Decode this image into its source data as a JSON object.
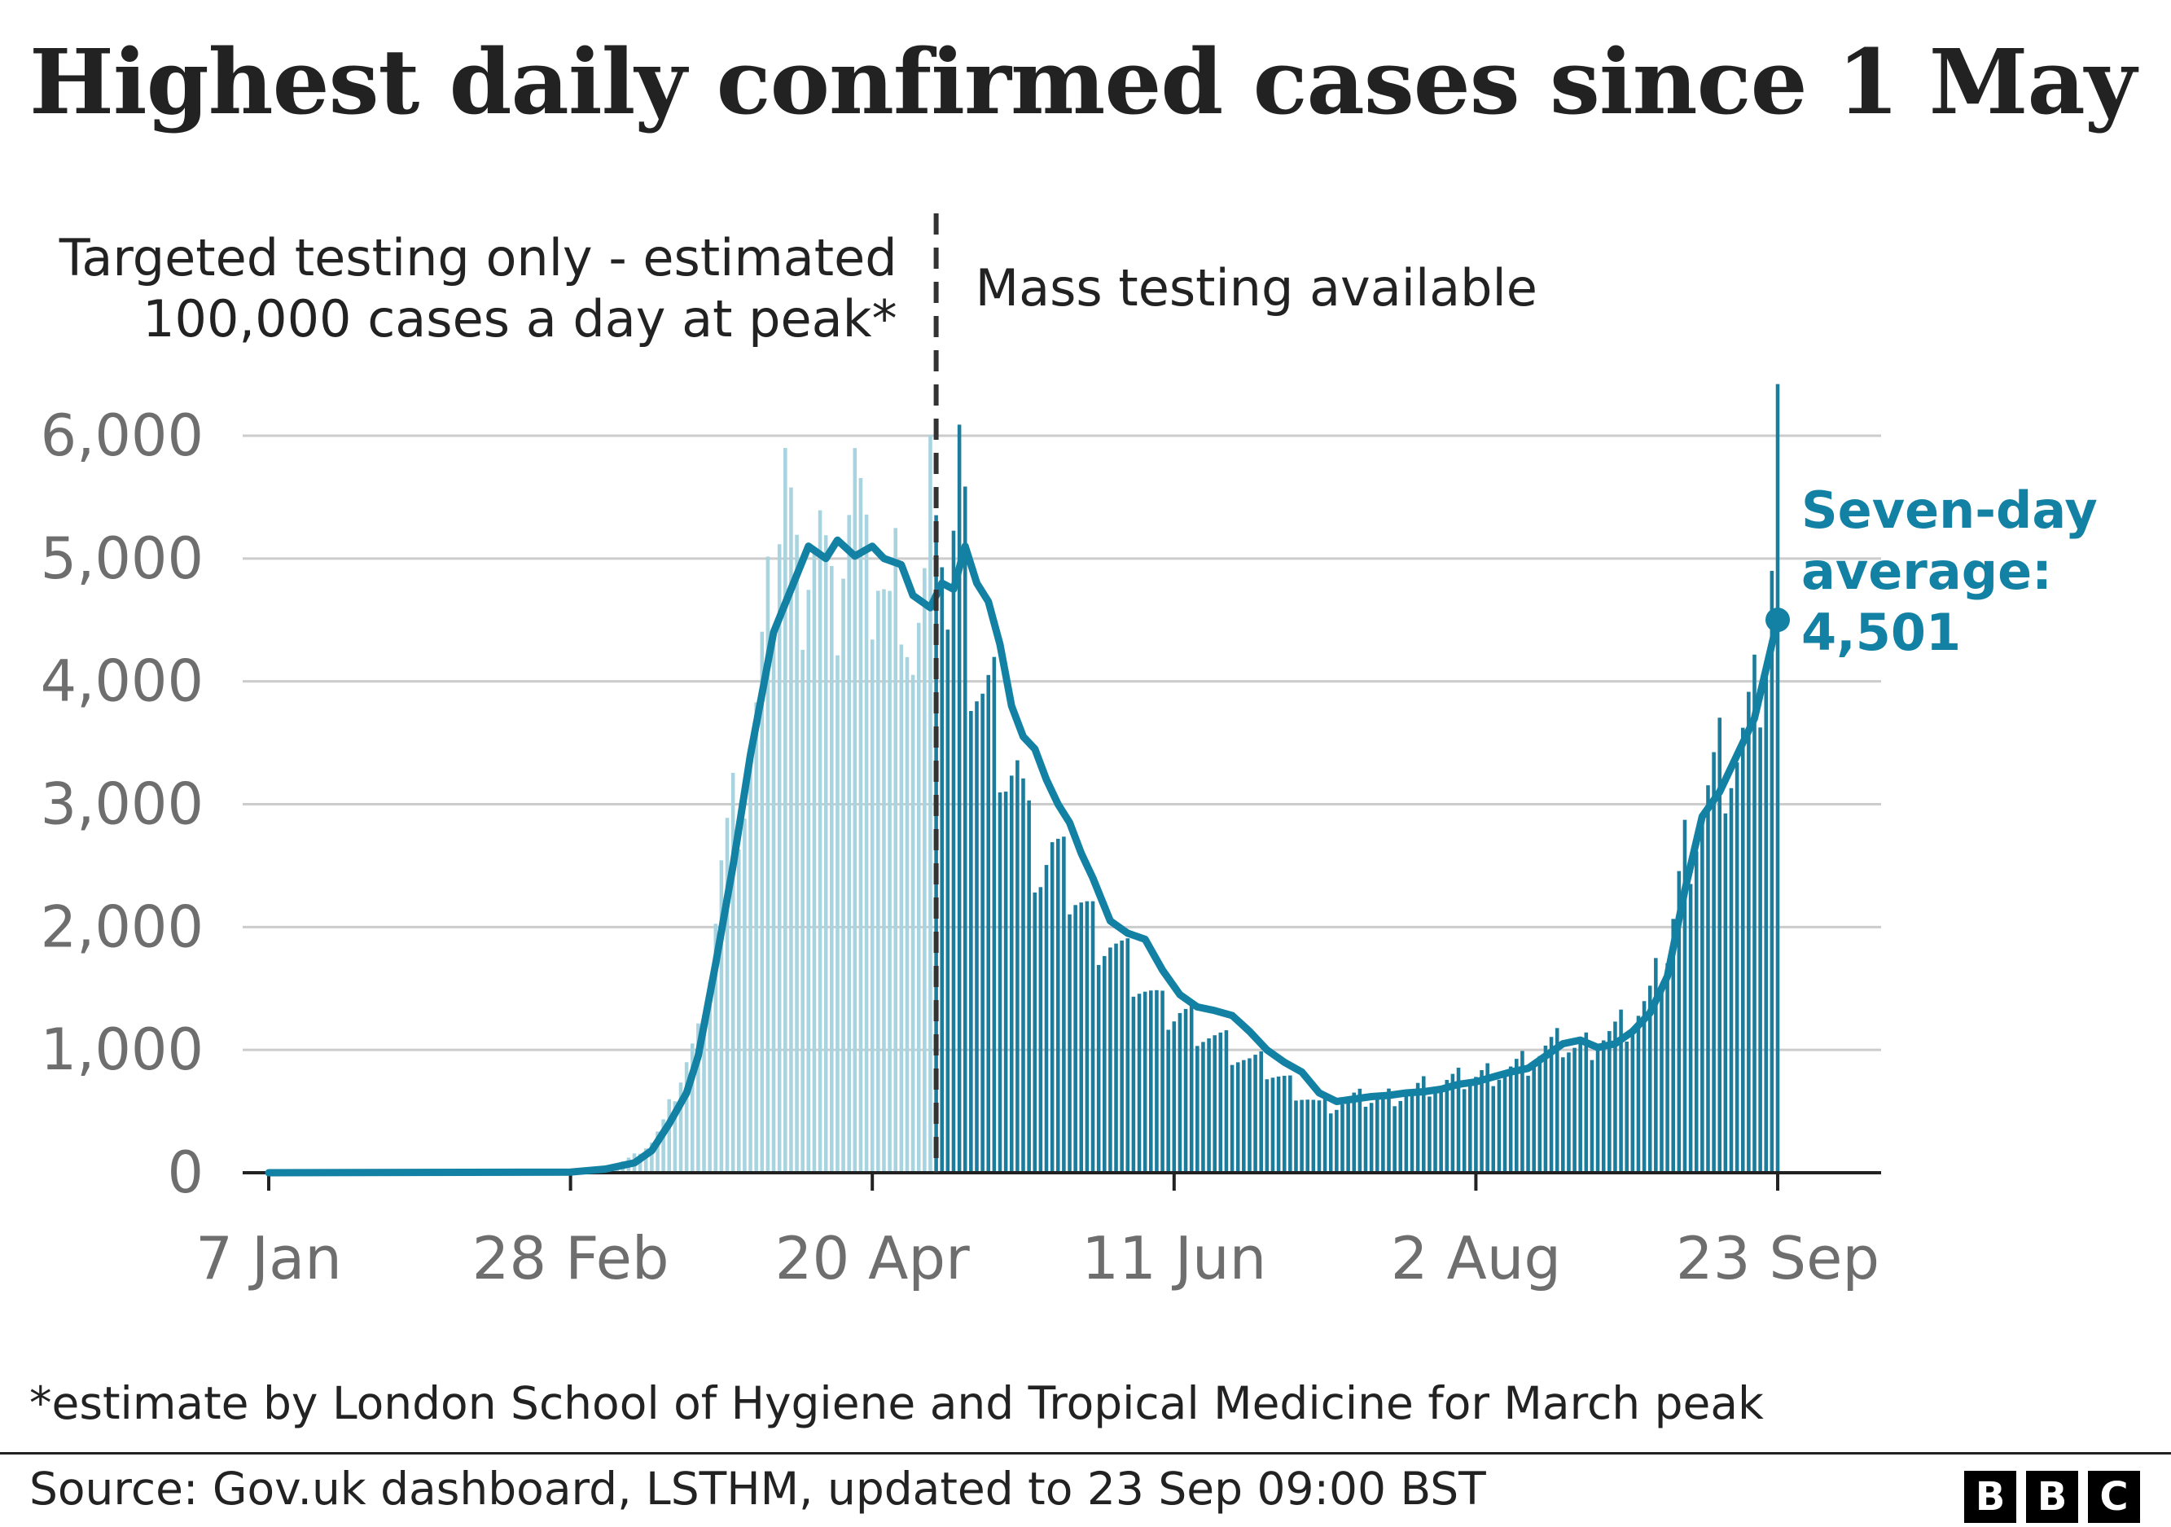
{
  "chart_data": {
    "type": "bar",
    "title": "Highest daily confirmed cases since 1 May",
    "xlabel": "",
    "ylabel": "",
    "x_start_label": "7 Jan",
    "x_end_label": "23 Sep",
    "x_ticks": [
      "7 Jan",
      "28 Feb",
      "20 Apr",
      "11 Jun",
      "2 Aug",
      "23 Sep"
    ],
    "y_ticks": [
      0,
      1000,
      2000,
      3000,
      4000,
      5000,
      6000
    ],
    "ylim": [
      0,
      6200
    ],
    "grid": true,
    "divider_label": "1 May",
    "periods": [
      {
        "label_lines": [
          "Targeted testing only - estimated",
          "100,000 cases a day at peak*"
        ],
        "color": "#a8d4e0"
      },
      {
        "label_lines": [
          "Mass testing available"
        ],
        "color": "#1c7c9c"
      }
    ],
    "series": [
      {
        "name": "Daily confirmed cases",
        "type": "bar",
        "points": [
          [
            "7 Jan",
            0
          ],
          [
            "25 Feb",
            2
          ],
          [
            "5 Mar",
            30
          ],
          [
            "8 Mar",
            90
          ],
          [
            "10 Mar",
            140
          ],
          [
            "13 Mar",
            250
          ],
          [
            "15 Mar",
            400
          ],
          [
            "17 Mar",
            650
          ],
          [
            "19 Mar",
            900
          ],
          [
            "21 Mar",
            1100
          ],
          [
            "23 Mar",
            1700
          ],
          [
            "25 Mar",
            2500
          ],
          [
            "27 Mar",
            2900
          ],
          [
            "29 Mar",
            3100
          ],
          [
            "31 Mar",
            3700
          ],
          [
            "2 Apr",
            4400
          ],
          [
            "5 Apr",
            5900
          ],
          [
            "7 Apr",
            4700
          ],
          [
            "9 Apr",
            5200
          ],
          [
            "11 Apr",
            5300
          ],
          [
            "13 Apr",
            4400
          ],
          [
            "15 Apr",
            5200
          ],
          [
            "17 Apr",
            5700
          ],
          [
            "19 Apr",
            4700
          ],
          [
            "21 Apr",
            5000
          ],
          [
            "23 Apr",
            4500
          ],
          [
            "25 Apr",
            5000
          ],
          [
            "27 Apr",
            4200
          ],
          [
            "29 Apr",
            4600
          ],
          [
            "1 May",
            6100
          ],
          [
            "3 May",
            4500
          ],
          [
            "5 May",
            5600
          ],
          [
            "7 May",
            4200
          ],
          [
            "9 May",
            3900
          ],
          [
            "11 May",
            3800
          ],
          [
            "13 May",
            3400
          ],
          [
            "15 May",
            3300
          ],
          [
            "17 May",
            2700
          ],
          [
            "19 May",
            2500
          ],
          [
            "21 May",
            2600
          ],
          [
            "23 May",
            2400
          ],
          [
            "25 May",
            2300
          ],
          [
            "28 May",
            2000
          ],
          [
            "31 May",
            1900
          ],
          [
            "3 Jun",
            1700
          ],
          [
            "6 Jun",
            1500
          ],
          [
            "9 Jun",
            1300
          ],
          [
            "12 Jun",
            1300
          ],
          [
            "15 Jun",
            1200
          ],
          [
            "18 Jun",
            1100
          ],
          [
            "21 Jun",
            1000
          ],
          [
            "24 Jun",
            900
          ],
          [
            "27 Jun",
            850
          ],
          [
            "30 Jun",
            750
          ],
          [
            "3 Jul",
            650
          ],
          [
            "6 Jul",
            550
          ],
          [
            "9 Jul",
            550
          ],
          [
            "12 Jul",
            600
          ],
          [
            "15 Jul",
            600
          ],
          [
            "18 Jul",
            620
          ],
          [
            "21 Jul",
            650
          ],
          [
            "24 Jul",
            700
          ],
          [
            "27 Jul",
            720
          ],
          [
            "30 Jul",
            750
          ],
          [
            "2 Aug",
            780
          ],
          [
            "5 Aug",
            820
          ],
          [
            "8 Aug",
            850
          ],
          [
            "11 Aug",
            900
          ],
          [
            "14 Aug",
            1000
          ],
          [
            "17 Aug",
            1050
          ],
          [
            "20 Aug",
            1000
          ],
          [
            "23 Aug",
            1100
          ],
          [
            "26 Aug",
            1150
          ],
          [
            "29 Aug",
            1250
          ],
          [
            "1 Sep",
            1400
          ],
          [
            "4 Sep",
            1800
          ],
          [
            "7 Sep",
            2600
          ],
          [
            "10 Sep",
            3000
          ],
          [
            "13 Sep",
            3300
          ],
          [
            "16 Sep",
            3400
          ],
          [
            "19 Sep",
            3700
          ],
          [
            "21 Sep",
            4400
          ],
          [
            "22 Sep",
            4900
          ],
          [
            "23 Sep",
            6100
          ]
        ]
      },
      {
        "name": "Seven-day average",
        "type": "line",
        "points": [
          [
            "7 Jan",
            0
          ],
          [
            "28 Feb",
            5
          ],
          [
            "5 Mar",
            30
          ],
          [
            "10 Mar",
            80
          ],
          [
            "13 Mar",
            180
          ],
          [
            "16 Mar",
            400
          ],
          [
            "19 Mar",
            650
          ],
          [
            "21 Mar",
            950
          ],
          [
            "24 Mar",
            1700
          ],
          [
            "27 Mar",
            2500
          ],
          [
            "30 Mar",
            3400
          ],
          [
            "1 Apr",
            3900
          ],
          [
            "3 Apr",
            4400
          ],
          [
            "6 Apr",
            4750
          ],
          [
            "9 Apr",
            5100
          ],
          [
            "12 Apr",
            5000
          ],
          [
            "14 Apr",
            5150
          ],
          [
            "17 Apr",
            5020
          ],
          [
            "20 Apr",
            5100
          ],
          [
            "22 Apr",
            5000
          ],
          [
            "25 Apr",
            4950
          ],
          [
            "27 Apr",
            4700
          ],
          [
            "30 Apr",
            4600
          ],
          [
            "2 May",
            4800
          ],
          [
            "4 May",
            4750
          ],
          [
            "6 May",
            5100
          ],
          [
            "8 May",
            4800
          ],
          [
            "10 May",
            4650
          ],
          [
            "12 May",
            4300
          ],
          [
            "14 May",
            3800
          ],
          [
            "16 May",
            3550
          ],
          [
            "18 May",
            3450
          ],
          [
            "20 May",
            3200
          ],
          [
            "22 May",
            3000
          ],
          [
            "24 May",
            2850
          ],
          [
            "26 May",
            2600
          ],
          [
            "28 May",
            2400
          ],
          [
            "31 May",
            2050
          ],
          [
            "3 Jun",
            1950
          ],
          [
            "6 Jun",
            1900
          ],
          [
            "9 Jun",
            1650
          ],
          [
            "12 Jun",
            1450
          ],
          [
            "15 Jun",
            1350
          ],
          [
            "18 Jun",
            1320
          ],
          [
            "21 Jun",
            1280
          ],
          [
            "24 Jun",
            1150
          ],
          [
            "27 Jun",
            1000
          ],
          [
            "30 Jun",
            900
          ],
          [
            "3 Jul",
            820
          ],
          [
            "6 Jul",
            650
          ],
          [
            "9 Jul",
            580
          ],
          [
            "12 Jul",
            600
          ],
          [
            "15 Jul",
            620
          ],
          [
            "18 Jul",
            630
          ],
          [
            "21 Jul",
            650
          ],
          [
            "24 Jul",
            660
          ],
          [
            "27 Jul",
            680
          ],
          [
            "30 Jul",
            720
          ],
          [
            "2 Aug",
            740
          ],
          [
            "5 Aug",
            780
          ],
          [
            "8 Aug",
            820
          ],
          [
            "11 Aug",
            850
          ],
          [
            "14 Aug",
            950
          ],
          [
            "17 Aug",
            1050
          ],
          [
            "20 Aug",
            1080
          ],
          [
            "23 Aug",
            1020
          ],
          [
            "26 Aug",
            1050
          ],
          [
            "29 Aug",
            1150
          ],
          [
            "1 Sep",
            1300
          ],
          [
            "4 Sep",
            1600
          ],
          [
            "7 Sep",
            2300
          ],
          [
            "10 Sep",
            2900
          ],
          [
            "13 Sep",
            3100
          ],
          [
            "16 Sep",
            3400
          ],
          [
            "19 Sep",
            3700
          ],
          [
            "21 Sep",
            4100
          ],
          [
            "23 Sep",
            4501
          ]
        ]
      }
    ],
    "annotation": {
      "label_lines": [
        "Seven-day",
        "average:",
        "4,501"
      ],
      "value": 4501,
      "date": "23 Sep"
    }
  },
  "footnote": "*estimate by London School of Hygiene and Tropical Medicine for March peak",
  "source": "Source: Gov.uk dashboard, LSTHM, updated to 23 Sep 09:00 BST",
  "logo": [
    "B",
    "B",
    "C"
  ],
  "colors": {
    "bar_before": "#a8d4e0",
    "bar_after": "#1c7c9c",
    "line": "#1381a3",
    "grid": "#cccccc",
    "tick_text": "#6e6e6e"
  }
}
